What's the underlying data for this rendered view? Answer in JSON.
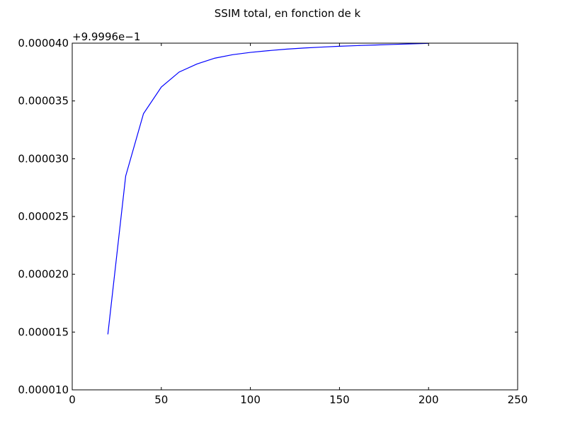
{
  "chart_data": {
    "type": "line",
    "title": "SSIM total, en fonction de k",
    "offset_label": "+9.9996e−1",
    "xlabel": "",
    "ylabel": "",
    "xlim": [
      0,
      250
    ],
    "ylim": [
      1e-05,
      4e-05
    ],
    "x_ticks": [
      0,
      50,
      100,
      150,
      200,
      250
    ],
    "x_tick_labels": [
      "0",
      "50",
      "100",
      "150",
      "200",
      "250"
    ],
    "y_ticks": [
      1e-05,
      1.5e-05,
      2e-05,
      2.5e-05,
      3e-05,
      3.5e-05,
      4e-05
    ],
    "y_tick_labels": [
      "0.000010",
      "0.000015",
      "0.000020",
      "0.000025",
      "0.000030",
      "0.000035",
      "0.000040"
    ],
    "grid": false,
    "line_color": "#0000ff",
    "series": [
      {
        "x": [
          20,
          30,
          40,
          50,
          60,
          70,
          80,
          90,
          100,
          110,
          120,
          130,
          140,
          150,
          160,
          170,
          180,
          190,
          200
        ],
        "values": [
          1.48e-05,
          2.85e-05,
          3.39e-05,
          3.62e-05,
          3.75e-05,
          3.82e-05,
          3.87e-05,
          3.9e-05,
          3.92e-05,
          3.935e-05,
          3.948e-05,
          3.958e-05,
          3.966e-05,
          3.973e-05,
          3.979e-05,
          3.984e-05,
          3.989e-05,
          3.994e-05,
          3.998e-05
        ]
      }
    ]
  }
}
